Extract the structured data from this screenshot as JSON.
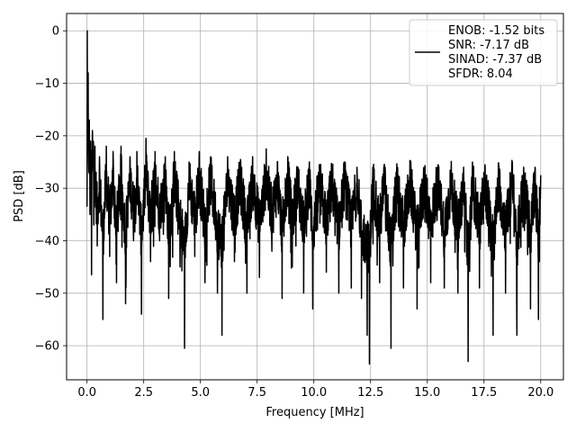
{
  "chart_data": {
    "type": "line",
    "xlabel": "Frequency [MHz]",
    "ylabel": "PSD [dB]",
    "xlim": [
      -0.9,
      21
    ],
    "ylim": [
      -66.5,
      3.3
    ],
    "xticks": [
      0.0,
      2.5,
      5.0,
      7.5,
      10.0,
      12.5,
      15.0,
      17.5,
      20.0
    ],
    "xtick_labels": [
      "0.0",
      "2.5",
      "5.0",
      "7.5",
      "10.0",
      "12.5",
      "15.0",
      "17.5",
      "20.0"
    ],
    "yticks": [
      0,
      -10,
      -20,
      -30,
      -40,
      -50,
      -60
    ],
    "ytick_labels": [
      "0",
      "−10",
      "−20",
      "−30",
      "−40",
      "−50",
      "−60"
    ],
    "grid": true,
    "legend_position": "top-right",
    "legend_lines": [
      "ENOB: -1.52 bits",
      "SNR: -7.17 dB",
      "SINAD: -7.37 dB",
      "SFDR: 8.04"
    ],
    "series": [
      {
        "color": "#000000",
        "description": "Noise-like PSD, peak 0 dB near 0 MHz, noise floor fluctuating roughly between -22 and -63 dB up to 20 MHz",
        "points": [
          [
            0.0,
            -33.5
          ],
          [
            0.01,
            0.0
          ],
          [
            0.03,
            -18.0
          ],
          [
            0.05,
            -8.0
          ],
          [
            0.08,
            -27.0
          ],
          [
            0.1,
            -17.0
          ],
          [
            0.13,
            -35.0
          ],
          [
            0.16,
            -21.0
          ],
          [
            0.2,
            -46.5
          ],
          [
            0.24,
            -19.0
          ],
          [
            0.3,
            -37.0
          ],
          [
            0.35,
            -22.0
          ],
          [
            0.45,
            -41.0
          ],
          [
            0.55,
            -24.0
          ],
          [
            0.7,
            -55.0
          ],
          [
            0.85,
            -22.0
          ],
          [
            1.0,
            -43.0
          ],
          [
            1.15,
            -23.0
          ],
          [
            1.3,
            -48.0
          ],
          [
            1.5,
            -22.0
          ],
          [
            1.7,
            -52.0
          ],
          [
            1.9,
            -24.0
          ],
          [
            2.05,
            -40.0
          ],
          [
            2.2,
            -23.0
          ],
          [
            2.4,
            -54.0
          ],
          [
            2.6,
            -20.5
          ],
          [
            2.8,
            -44.0
          ],
          [
            3.0,
            -23.0
          ],
          [
            3.2,
            -40.0
          ],
          [
            3.45,
            -24.0
          ],
          [
            3.6,
            -51.0
          ],
          [
            3.85,
            -23.0
          ],
          [
            4.1,
            -45.0
          ],
          [
            4.3,
            -60.5
          ],
          [
            4.5,
            -25.0
          ],
          [
            4.75,
            -43.0
          ],
          [
            4.95,
            -23.0
          ],
          [
            5.2,
            -48.0
          ],
          [
            5.45,
            -24.0
          ],
          [
            5.75,
            -50.0
          ],
          [
            5.95,
            -58.0
          ],
          [
            6.2,
            -24.0
          ],
          [
            6.5,
            -44.0
          ],
          [
            6.75,
            -25.0
          ],
          [
            7.05,
            -50.0
          ],
          [
            7.3,
            -24.0
          ],
          [
            7.6,
            -47.0
          ],
          [
            7.9,
            -22.5
          ],
          [
            8.15,
            -42.0
          ],
          [
            8.4,
            -25.0
          ],
          [
            8.6,
            -51.0
          ],
          [
            8.85,
            -24.0
          ],
          [
            9.05,
            -45.0
          ],
          [
            9.3,
            -26.0
          ],
          [
            9.55,
            -50.0
          ],
          [
            9.8,
            -25.0
          ],
          [
            9.95,
            -53.0
          ],
          [
            10.25,
            -26.0
          ],
          [
            10.55,
            -46.0
          ],
          [
            10.8,
            -26.0
          ],
          [
            11.1,
            -50.0
          ],
          [
            11.35,
            -25.0
          ],
          [
            11.65,
            -49.0
          ],
          [
            11.9,
            -26.0
          ],
          [
            12.1,
            -51.0
          ],
          [
            12.35,
            -58.0
          ],
          [
            12.45,
            -63.5
          ],
          [
            12.6,
            -26.0
          ],
          [
            12.9,
            -48.0
          ],
          [
            13.1,
            -25.5
          ],
          [
            13.4,
            -60.5
          ],
          [
            13.65,
            -27.0
          ],
          [
            13.95,
            -49.0
          ],
          [
            14.25,
            -26.0
          ],
          [
            14.55,
            -53.0
          ],
          [
            14.85,
            -27.0
          ],
          [
            15.15,
            -48.0
          ],
          [
            15.45,
            -26.0
          ],
          [
            15.75,
            -49.0
          ],
          [
            16.05,
            -27.0
          ],
          [
            16.35,
            -50.0
          ],
          [
            16.6,
            -26.0
          ],
          [
            16.8,
            -63.0
          ],
          [
            17.0,
            -27.0
          ],
          [
            17.3,
            -49.0
          ],
          [
            17.55,
            -26.0
          ],
          [
            17.9,
            -58.0
          ],
          [
            18.15,
            -26.0
          ],
          [
            18.45,
            -50.0
          ],
          [
            18.75,
            -25.0
          ],
          [
            18.95,
            -58.0
          ],
          [
            19.25,
            -26.0
          ],
          [
            19.55,
            -53.0
          ],
          [
            19.75,
            -26.0
          ],
          [
            19.9,
            -55.0
          ],
          [
            20.0,
            -27.5
          ]
        ]
      }
    ]
  }
}
